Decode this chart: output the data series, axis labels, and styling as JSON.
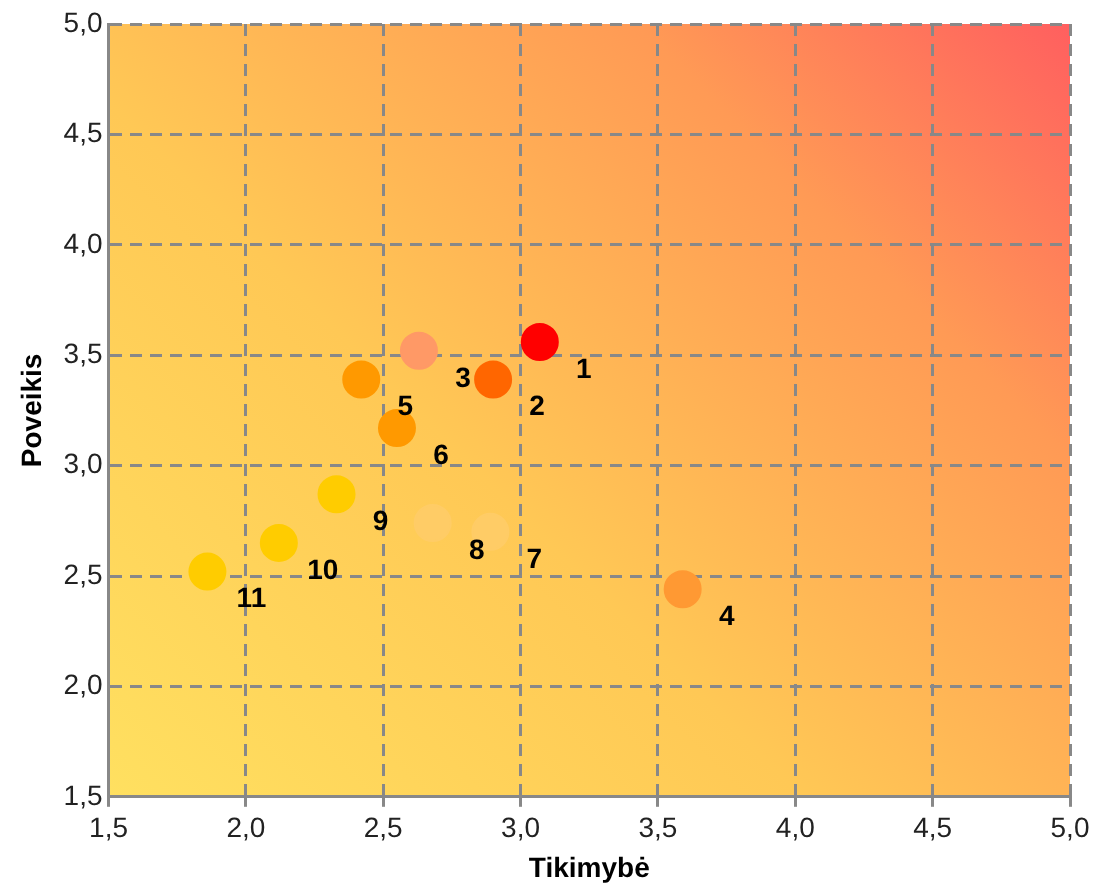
{
  "chart_data": {
    "type": "scatter",
    "xlabel": "Tikimybė",
    "ylabel": "Poveikis",
    "xlim": [
      1.5,
      5.0
    ],
    "ylim": [
      1.5,
      5.0
    ],
    "xticks": [
      {
        "value": 1.5,
        "label": "1,5"
      },
      {
        "value": 2.0,
        "label": "2,0"
      },
      {
        "value": 2.5,
        "label": "2,5"
      },
      {
        "value": 3.0,
        "label": "3,0"
      },
      {
        "value": 3.5,
        "label": "3,5"
      },
      {
        "value": 4.0,
        "label": "4,0"
      },
      {
        "value": 4.5,
        "label": "4,5"
      },
      {
        "value": 5.0,
        "label": "5,0"
      }
    ],
    "yticks": [
      {
        "value": 1.5,
        "label": "1,5"
      },
      {
        "value": 2.0,
        "label": "2,0"
      },
      {
        "value": 2.5,
        "label": "2,5"
      },
      {
        "value": 3.0,
        "label": "3,0"
      },
      {
        "value": 3.5,
        "label": "3,5"
      },
      {
        "value": 4.0,
        "label": "4,0"
      },
      {
        "value": 4.5,
        "label": "4,5"
      },
      {
        "value": 5.0,
        "label": "5,0"
      }
    ],
    "grid": true,
    "marker": "circle",
    "series": [
      {
        "name": "1",
        "color": "#ff0000",
        "x": [
          3.07
        ],
        "values": [
          3.56
        ]
      },
      {
        "name": "2",
        "color": "#ff6600",
        "x": [
          2.9
        ],
        "values": [
          3.39
        ]
      },
      {
        "name": "3",
        "color": "#ff9966",
        "x": [
          2.63
        ],
        "values": [
          3.52
        ]
      },
      {
        "name": "4",
        "color": "#ff9933",
        "x": [
          3.59
        ],
        "values": [
          2.44
        ]
      },
      {
        "name": "5",
        "color": "#ff9900",
        "x": [
          2.42
        ],
        "values": [
          3.39
        ]
      },
      {
        "name": "6",
        "color": "#ff9900",
        "x": [
          2.55
        ],
        "values": [
          3.17
        ]
      },
      {
        "name": "7",
        "color": "#ffcc66",
        "x": [
          2.89
        ],
        "values": [
          2.7
        ]
      },
      {
        "name": "8",
        "color": "#ffcc66",
        "x": [
          2.68
        ],
        "values": [
          2.74
        ]
      },
      {
        "name": "9",
        "color": "#ffcc00",
        "x": [
          2.33
        ],
        "values": [
          2.87
        ]
      },
      {
        "name": "10",
        "color": "#ffcc00",
        "x": [
          2.12
        ],
        "values": [
          2.65
        ]
      },
      {
        "name": "11",
        "color": "#ffcc00",
        "x": [
          1.86
        ],
        "values": [
          2.52
        ]
      }
    ]
  }
}
